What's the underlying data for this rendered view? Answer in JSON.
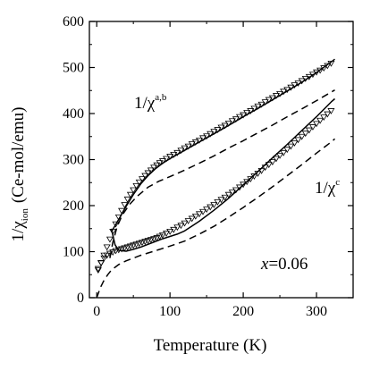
{
  "chart_data": {
    "type": "scatter",
    "xlabel": "Temperature (K)",
    "ylabel": {
      "main": "1/χ",
      "sub": "ion",
      "unit": "(Ce-mol/emu)"
    },
    "xlim": [
      -10,
      350
    ],
    "ylim": [
      0,
      600
    ],
    "xticks": [
      0,
      100,
      200,
      300
    ],
    "yticks": [
      0,
      100,
      200,
      300,
      400,
      500,
      600
    ],
    "grid": false,
    "annotations": {
      "ab": {
        "main": "1/χ",
        "sup": "a,b"
      },
      "c": {
        "main": "1/χ",
        "sup": "c"
      },
      "x": {
        "var": "x",
        "value": "=0.06"
      }
    },
    "series": [
      {
        "kind": "markers",
        "group": "ab",
        "x": [
          2,
          6,
          10,
          14,
          18,
          22,
          26,
          30,
          34,
          38,
          42,
          46,
          50,
          54,
          58,
          62,
          66,
          70,
          74,
          78,
          82,
          86,
          90,
          95,
          100,
          105,
          110,
          115,
          120,
          125,
          130,
          135,
          140,
          145,
          150,
          155,
          160,
          165,
          170,
          175,
          180,
          185,
          190,
          195,
          200,
          205,
          210,
          215,
          220,
          225,
          230,
          235,
          240,
          245,
          250,
          255,
          260,
          265,
          270,
          275,
          280,
          285,
          290,
          295,
          300,
          305,
          310,
          315,
          320
        ],
        "y": [
          63,
          75,
          92,
          110,
          127,
          144,
          160,
          175,
          189,
          202,
          214,
          224,
          234,
          243,
          251,
          258,
          265,
          271,
          277,
          283,
          288,
          293,
          297,
          302,
          307,
          311,
          315,
          320,
          325,
          329,
          334,
          338,
          342,
          347,
          351,
          356,
          361,
          365,
          370,
          374,
          379,
          384,
          388,
          393,
          397,
          402,
          406,
          411,
          416,
          420,
          425,
          430,
          434,
          439,
          443,
          448,
          452,
          457,
          462,
          466,
          471,
          476,
          480,
          485,
          490,
          494,
          499,
          504,
          509
        ]
      },
      {
        "kind": "markers",
        "group": "c",
        "x": [
          2,
          6,
          10,
          14,
          18,
          22,
          26,
          30,
          34,
          38,
          42,
          46,
          50,
          54,
          58,
          62,
          66,
          70,
          74,
          78,
          82,
          86,
          90,
          95,
          100,
          105,
          110,
          115,
          120,
          125,
          130,
          135,
          140,
          145,
          150,
          155,
          160,
          165,
          170,
          175,
          180,
          185,
          190,
          195,
          200,
          205,
          210,
          215,
          220,
          225,
          230,
          235,
          240,
          245,
          250,
          255,
          260,
          265,
          270,
          275,
          280,
          285,
          290,
          295,
          300,
          305,
          310,
          315,
          320
        ],
        "y": [
          60,
          76,
          86,
          92,
          96,
          99,
          102,
          104,
          106,
          108,
          110,
          112,
          114,
          116,
          118,
          120,
          122,
          124,
          126,
          128,
          130,
          133,
          136,
          140,
          144,
          148,
          153,
          157,
          162,
          167,
          172,
          177,
          182,
          187,
          192,
          197,
          202,
          208,
          213,
          218,
          224,
          229,
          234,
          240,
          246,
          252,
          258,
          264,
          270,
          276,
          283,
          289,
          295,
          302,
          309,
          315,
          322,
          329,
          336,
          343,
          350,
          357,
          364,
          371,
          378,
          385,
          392,
          399,
          406
        ]
      },
      {
        "kind": "solid",
        "group": "ab",
        "x": [
          20,
          30,
          40,
          50,
          60,
          70,
          80,
          90,
          100,
          110,
          120,
          140,
          160,
          180,
          200,
          220,
          240,
          260,
          280,
          300,
          320,
          325
        ],
        "y": [
          143,
          170,
          198,
          224,
          247,
          265,
          280,
          292,
          302,
          311,
          320,
          338,
          356,
          374,
          393,
          411,
          430,
          449,
          468,
          489,
          512,
          518
        ]
      },
      {
        "kind": "solid",
        "group": "c",
        "x": [
          20,
          25,
          30,
          40,
          50,
          60,
          70,
          80,
          90,
          100,
          110,
          120,
          140,
          160,
          180,
          200,
          220,
          240,
          260,
          280,
          300,
          320,
          325
        ],
        "y": [
          150,
          115,
          103,
          101,
          105,
          110,
          116,
          122,
          128,
          133,
          138,
          145,
          166,
          190,
          216,
          245,
          274,
          304,
          333,
          363,
          393,
          425,
          432
        ]
      },
      {
        "kind": "dashed",
        "group": "ab",
        "x": [
          18,
          22,
          28,
          35,
          45,
          55,
          70,
          85,
          100,
          120,
          140,
          160,
          180,
          200,
          220,
          240,
          260,
          280,
          300,
          325
        ],
        "y": [
          86,
          120,
          155,
          180,
          203,
          220,
          240,
          253,
          263,
          277,
          292,
          308,
          325,
          341,
          358,
          375,
          393,
          410,
          428,
          451
        ]
      },
      {
        "kind": "dashed",
        "group": "c",
        "x": [
          0,
          5,
          10,
          15,
          20,
          25,
          30,
          40,
          50,
          60,
          70,
          80,
          100,
          120,
          140,
          160,
          180,
          200,
          220,
          240,
          260,
          280,
          300,
          320,
          325
        ],
        "y": [
          0,
          22,
          38,
          50,
          60,
          66,
          72,
          80,
          86,
          92,
          97,
          102,
          112,
          123,
          138,
          155,
          175,
          196,
          218,
          241,
          265,
          289,
          314,
          338,
          345
        ]
      }
    ]
  }
}
